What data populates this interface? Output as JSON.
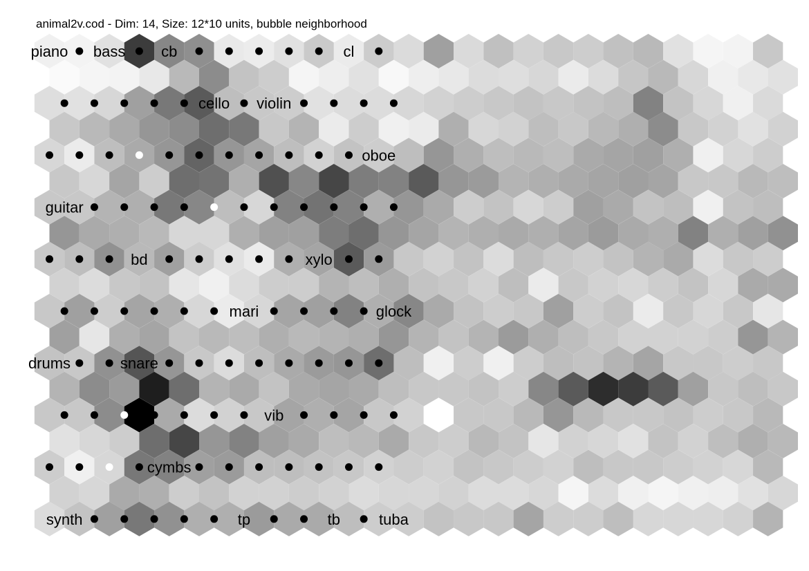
{
  "title": "animal2v.cod - Dim: 14, Size: 12*10 units, bubble neighborhood",
  "map": {
    "cols": 12,
    "rows": 10,
    "dim": 14,
    "neighborhood": "bubble",
    "topology": "hexa",
    "colormap": "grayscale"
  },
  "shading": [
    [
      240,
      243,
      225,
      60,
      135,
      143,
      233,
      236,
      225,
      202,
      235,
      204,
      219,
      160,
      218,
      192,
      210,
      200,
      205,
      193,
      185,
      225,
      245,
      243,
      200
    ],
    [
      250,
      245,
      243,
      232,
      185,
      140,
      195,
      205,
      245,
      238,
      225,
      248,
      238,
      232,
      220,
      222,
      215,
      235,
      220,
      198,
      185,
      215,
      240,
      232,
      225
    ],
    [
      222,
      225,
      215,
      160,
      120,
      90,
      190,
      200,
      205,
      225,
      220,
      220,
      215,
      210,
      205,
      200,
      195,
      200,
      195,
      190,
      130,
      195,
      215,
      240,
      218
    ],
    [
      200,
      185,
      170,
      150,
      140,
      110,
      120,
      200,
      180,
      235,
      205,
      240,
      235,
      175,
      215,
      210,
      190,
      200,
      185,
      175,
      140,
      200,
      210,
      225,
      210
    ],
    [
      215,
      235,
      190,
      170,
      150,
      100,
      150,
      165,
      190,
      210,
      195,
      205,
      190,
      150,
      175,
      190,
      185,
      190,
      170,
      165,
      160,
      175,
      240,
      215,
      205
    ],
    [
      200,
      215,
      165,
      205,
      110,
      115,
      175,
      80,
      135,
      70,
      125,
      130,
      90,
      150,
      155,
      180,
      175,
      170,
      165,
      160,
      165,
      200,
      200,
      185,
      190
    ],
    [
      200,
      200,
      180,
      175,
      120,
      135,
      190,
      215,
      130,
      115,
      130,
      175,
      150,
      170,
      205,
      195,
      215,
      205,
      160,
      170,
      195,
      190,
      240,
      195,
      190
    ],
    [
      150,
      170,
      175,
      185,
      215,
      215,
      175,
      160,
      160,
      125,
      110,
      150,
      165,
      180,
      175,
      170,
      175,
      165,
      155,
      170,
      175,
      130,
      175,
      160,
      145
    ],
    [
      200,
      190,
      145,
      185,
      160,
      205,
      225,
      235,
      175,
      165,
      90,
      155,
      200,
      210,
      195,
      220,
      190,
      200,
      205,
      195,
      180,
      170,
      220,
      200,
      205
    ],
    [
      210,
      220,
      200,
      195,
      230,
      240,
      220,
      205,
      205,
      180,
      190,
      175,
      195,
      200,
      210,
      190,
      235,
      200,
      210,
      215,
      205,
      195,
      215,
      170,
      170
    ],
    [
      200,
      160,
      205,
      165,
      175,
      215,
      235,
      215,
      165,
      160,
      130,
      175,
      135,
      170,
      195,
      205,
      200,
      160,
      205,
      195,
      235,
      200,
      215,
      200,
      230
    ],
    [
      160,
      230,
      175,
      165,
      195,
      185,
      190,
      175,
      185,
      180,
      175,
      150,
      180,
      195,
      180,
      155,
      175,
      190,
      200,
      210,
      210,
      210,
      205,
      150,
      180
    ],
    [
      195,
      200,
      145,
      85,
      150,
      200,
      220,
      190,
      170,
      155,
      150,
      110,
      190,
      240,
      205,
      240,
      205,
      190,
      195,
      180,
      165,
      200,
      200,
      205,
      200
    ],
    [
      180,
      140,
      155,
      30,
      110,
      180,
      170,
      195,
      170,
      165,
      170,
      190,
      200,
      200,
      195,
      205,
      135,
      90,
      45,
      60,
      90,
      160,
      200,
      190,
      200
    ],
    [
      200,
      200,
      140,
      0,
      170,
      220,
      210,
      200,
      165,
      175,
      165,
      200,
      210,
      255,
      200,
      200,
      185,
      150,
      185,
      200,
      200,
      195,
      205,
      200,
      185
    ],
    [
      225,
      215,
      205,
      110,
      70,
      150,
      130,
      160,
      170,
      190,
      185,
      170,
      200,
      205,
      185,
      195,
      230,
      210,
      215,
      225,
      195,
      210,
      190,
      175,
      185
    ],
    [
      205,
      240,
      215,
      120,
      130,
      160,
      155,
      190,
      190,
      195,
      200,
      210,
      205,
      210,
      195,
      200,
      205,
      210,
      190,
      200,
      200,
      205,
      210,
      215,
      185
    ],
    [
      210,
      215,
      170,
      175,
      205,
      195,
      210,
      210,
      205,
      210,
      220,
      215,
      215,
      210,
      220,
      220,
      215,
      245,
      220,
      240,
      245,
      240,
      238,
      225,
      215
    ],
    [
      220,
      195,
      160,
      120,
      145,
      175,
      175,
      155,
      170,
      170,
      190,
      205,
      205,
      195,
      200,
      200,
      165,
      205,
      205,
      190,
      215,
      215,
      215,
      210,
      180
    ]
  ],
  "labels": [
    {
      "text": "piano",
      "col": 0,
      "row": 0
    },
    {
      "text": "bass",
      "col": 2,
      "row": 0
    },
    {
      "text": "cb",
      "col": 4,
      "row": 0
    },
    {
      "text": "cl",
      "col": 10,
      "row": 0
    },
    {
      "text": "cello",
      "col": 5,
      "row": 1
    },
    {
      "text": "violin",
      "col": 7,
      "row": 1
    },
    {
      "text": "oboe",
      "col": 11,
      "row": 2
    },
    {
      "text": "guitar",
      "col": 0,
      "row": 3
    },
    {
      "text": "bd",
      "col": 3,
      "row": 4
    },
    {
      "text": "xylo",
      "col": 9,
      "row": 4
    },
    {
      "text": "mari",
      "col": 6,
      "row": 5
    },
    {
      "text": "glock",
      "col": 11,
      "row": 5
    },
    {
      "text": "drums",
      "col": 0,
      "row": 6
    },
    {
      "text": "snare",
      "col": 3,
      "row": 6
    },
    {
      "text": "vib",
      "col": 7,
      "row": 7
    },
    {
      "text": "cymbs",
      "col": 4,
      "row": 8
    },
    {
      "text": "synth",
      "col": 0,
      "row": 9
    },
    {
      "text": "tp",
      "col": 6,
      "row": 9
    },
    {
      "text": "tb",
      "col": 9,
      "row": 9
    },
    {
      "text": "tuba",
      "col": 11,
      "row": 9
    }
  ],
  "highlighted_units": [
    {
      "col": 3,
      "row": 2
    },
    {
      "col": 5,
      "row": 3
    },
    {
      "col": 2,
      "row": 7
    },
    {
      "col": 2,
      "row": 8
    }
  ],
  "colors": {
    "unit_marker": "#000000",
    "highlight_marker": "#ffffff",
    "background": "#ffffff"
  }
}
